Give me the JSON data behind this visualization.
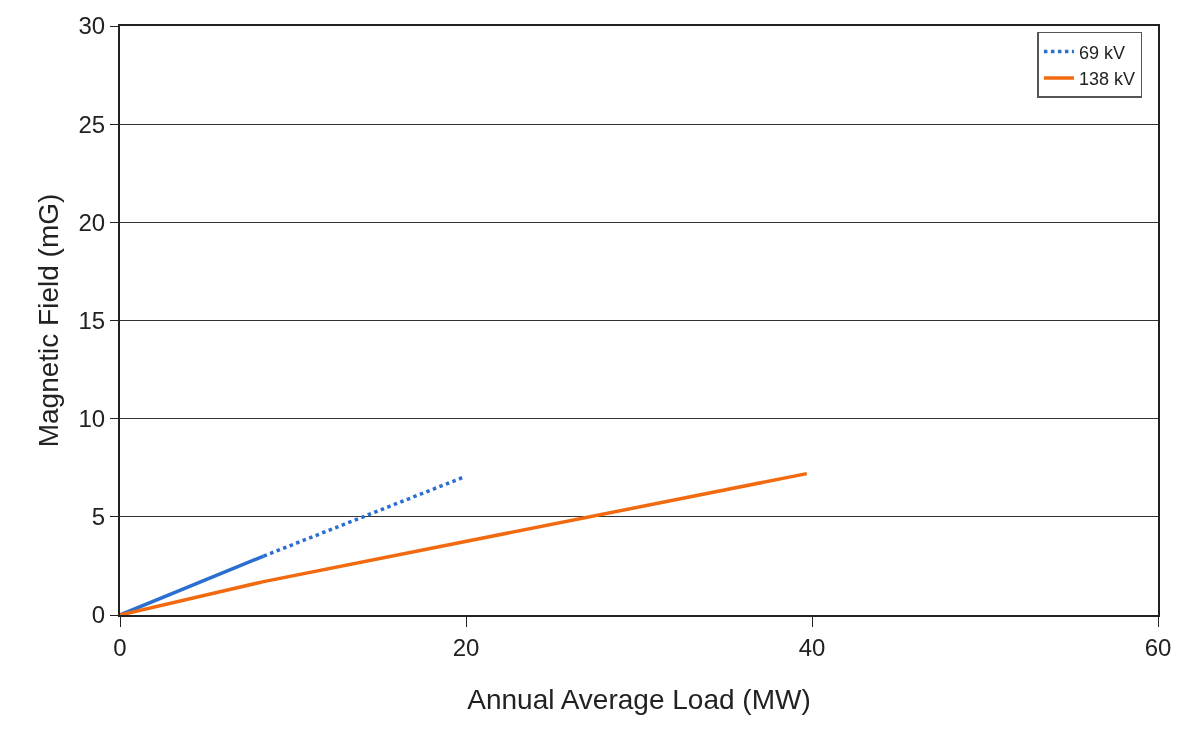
{
  "chart_data": {
    "type": "line",
    "xlabel": "Annual Average Load (MW)",
    "ylabel": "Magnetic Field (mG)",
    "series": [
      {
        "color": "#2a6fd0",
        "line_style": "solid",
        "x": [
          0,
          8.3
        ],
        "values": [
          0,
          3
        ]
      },
      {
        "name": "69 kV",
        "color": "#2a6fd0",
        "line_style": "dotted",
        "x": [
          8.3,
          19.8
        ],
        "values": [
          3,
          7
        ]
      },
      {
        "name": "138 kV",
        "color": "#f26a10",
        "line_style": "solid",
        "x": [
          0,
          8.3,
          39.7
        ],
        "values": [
          0,
          1.7,
          7.2
        ]
      }
    ],
    "xlim": [
      0,
      60
    ],
    "xticks": [
      0,
      20,
      40,
      60
    ],
    "ylim": [
      0,
      30
    ],
    "yticks": [
      0,
      5,
      10,
      15,
      20,
      25,
      30
    ],
    "grid": "y",
    "legend": "top right",
    "marker": "none"
  }
}
